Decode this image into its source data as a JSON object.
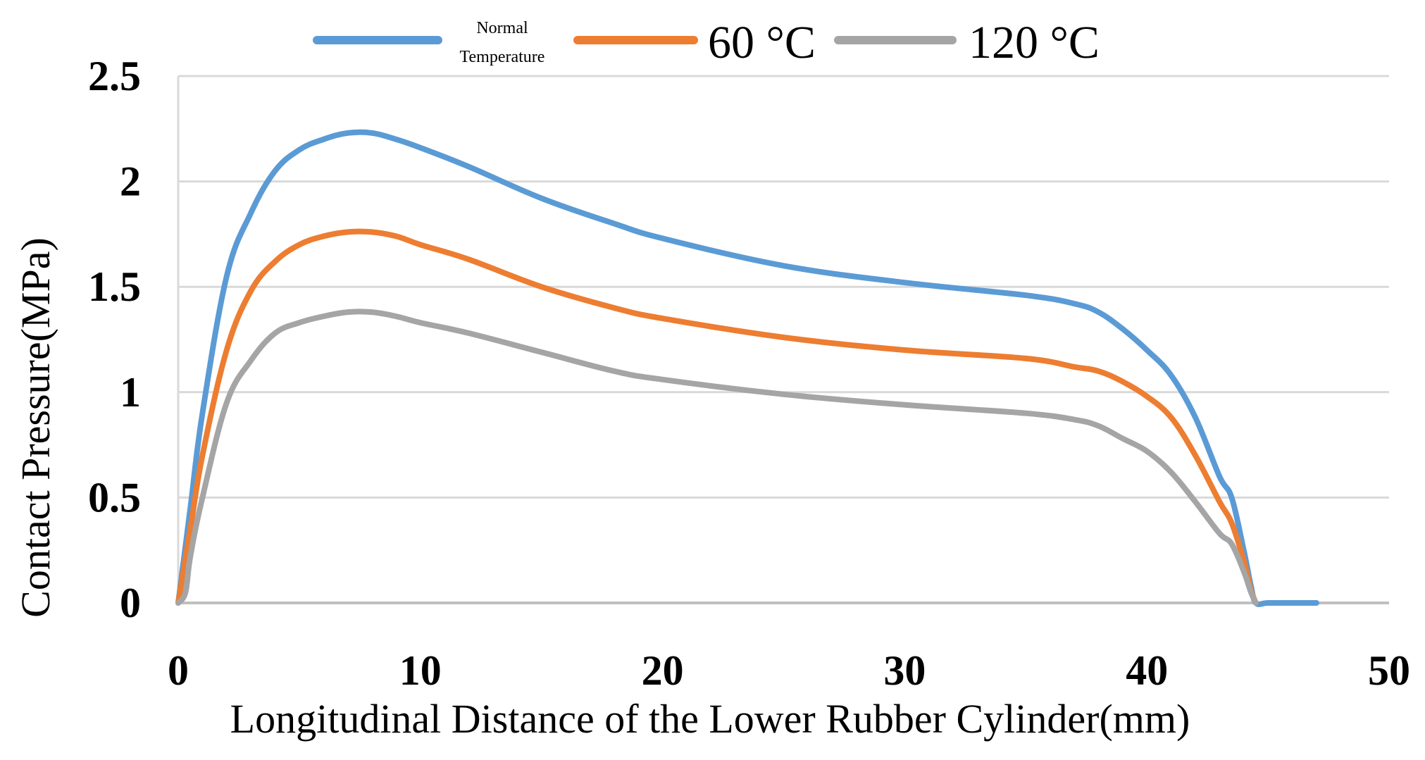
{
  "chart_data": {
    "type": "line",
    "title": "",
    "xlabel": "Longitudinal Distance of the Lower Rubber Cylinder(mm)",
    "ylabel": "Contact Pressure(MPa)",
    "xlim": [
      0,
      50
    ],
    "ylim": [
      0,
      2.5
    ],
    "x_ticks": [
      "0",
      "10",
      "20",
      "30",
      "40",
      "50"
    ],
    "y_ticks": [
      "0",
      "0.5",
      "1",
      "1.5",
      "2",
      "2.5"
    ],
    "grid": "horizontal",
    "legend_position": "top",
    "legend": [
      {
        "label_line1": "Normal",
        "label_line2": "Temperature",
        "color": "#5B9BD5"
      },
      {
        "label": "60 °C",
        "color": "#ED7D31"
      },
      {
        "label": "120 °C",
        "color": "#A5A5A5"
      }
    ],
    "series": [
      {
        "name": "Normal Temperature",
        "color": "#5B9BD5",
        "x": [
          0,
          0.5,
          1,
          2,
          3,
          4,
          5,
          6,
          7,
          8,
          9,
          10,
          12,
          15,
          18,
          20,
          25,
          30,
          35,
          37,
          38,
          39,
          40,
          41,
          42,
          43,
          43.5,
          44,
          44.3,
          44.5,
          45,
          46,
          47
        ],
        "y": [
          0,
          0.45,
          0.9,
          1.55,
          1.85,
          2.05,
          2.15,
          2.2,
          2.23,
          2.23,
          2.2,
          2.16,
          2.07,
          1.92,
          1.8,
          1.73,
          1.6,
          1.52,
          1.46,
          1.42,
          1.38,
          1.3,
          1.2,
          1.08,
          0.88,
          0.6,
          0.5,
          0.25,
          0.08,
          0,
          0,
          0,
          0
        ]
      },
      {
        "name": "60 °C",
        "color": "#ED7D31",
        "x": [
          0,
          0.5,
          1,
          2,
          3,
          4,
          5,
          6,
          7,
          8,
          9,
          10,
          12,
          15,
          18,
          20,
          25,
          30,
          35,
          37,
          38,
          39,
          40,
          41,
          42,
          43,
          43.5,
          44,
          44.3,
          44.5
        ],
        "y": [
          0,
          0.35,
          0.7,
          1.2,
          1.48,
          1.62,
          1.7,
          1.74,
          1.76,
          1.76,
          1.74,
          1.7,
          1.63,
          1.5,
          1.4,
          1.35,
          1.26,
          1.2,
          1.16,
          1.12,
          1.1,
          1.05,
          0.98,
          0.88,
          0.7,
          0.48,
          0.38,
          0.2,
          0.06,
          0
        ]
      },
      {
        "name": "120 °C",
        "color": "#A5A5A5",
        "x": [
          0,
          0.3,
          0.5,
          1,
          2,
          3,
          4,
          5,
          6,
          7,
          8,
          9,
          10,
          12,
          15,
          18,
          20,
          25,
          30,
          35,
          37,
          38,
          39,
          40,
          41,
          42,
          43,
          43.5,
          44,
          44.3,
          44.5
        ],
        "y": [
          0,
          0.05,
          0.22,
          0.5,
          0.95,
          1.15,
          1.28,
          1.33,
          1.36,
          1.38,
          1.38,
          1.36,
          1.33,
          1.28,
          1.19,
          1.1,
          1.06,
          0.99,
          0.94,
          0.9,
          0.87,
          0.84,
          0.78,
          0.72,
          0.62,
          0.48,
          0.33,
          0.28,
          0.15,
          0.05,
          0
        ]
      }
    ]
  }
}
